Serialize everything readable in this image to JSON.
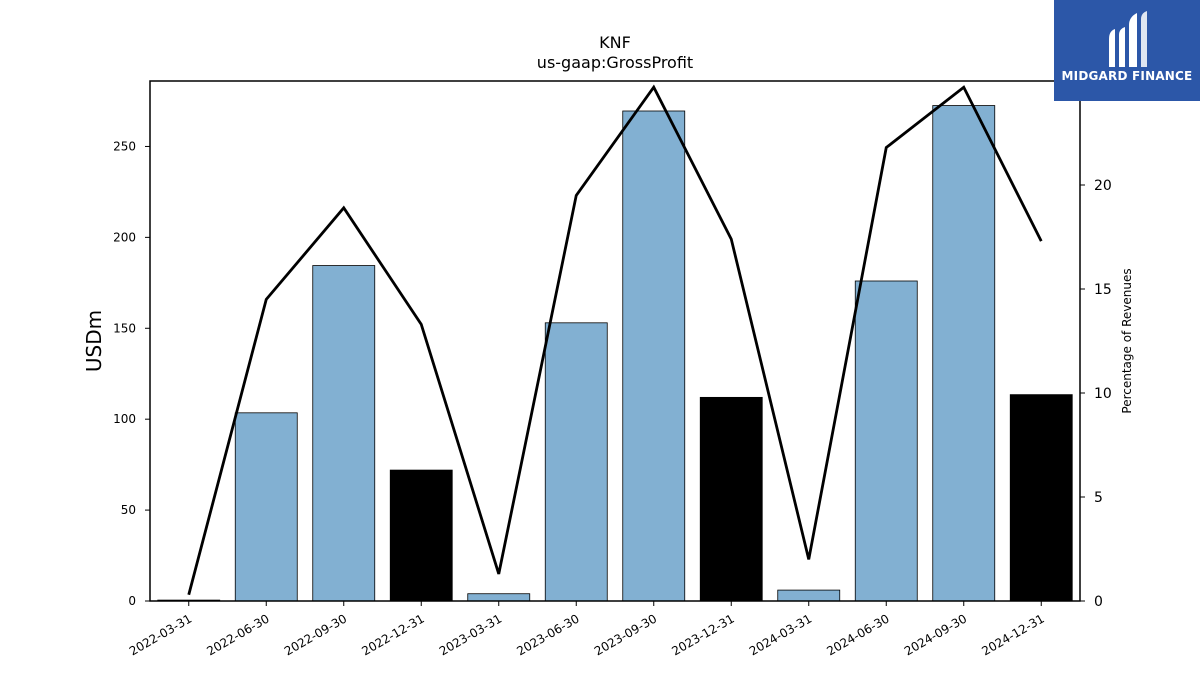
{
  "chart_data": {
    "type": "bar",
    "title": "KNF",
    "subtitle": "us-gaap:GrossProfit",
    "ylabel": "USDm",
    "y2label": "Percentage of Revenues",
    "categories": [
      "2022-03-31",
      "2022-06-30",
      "2022-09-30",
      "2022-12-31",
      "2023-03-31",
      "2023-06-30",
      "2023-09-30",
      "2023-12-31",
      "2024-03-31",
      "2024-06-30",
      "2024-09-30",
      "2024-12-31"
    ],
    "series": [
      {
        "values": [
          0.5,
          103.5,
          184.5,
          72,
          4,
          153,
          269.5,
          112,
          6,
          176,
          272.5,
          113.5
        ],
        "bar_colors": [
          "#82b0d2",
          "#82b0d2",
          "#82b0d2",
          "#000000",
          "#82b0d2",
          "#82b0d2",
          "#82b0d2",
          "#000000",
          "#82b0d2",
          "#82b0d2",
          "#82b0d2",
          "#000000"
        ]
      },
      {
        "type": "line",
        "axis": "right",
        "values": [
          0.3,
          14.5,
          18.9,
          13.3,
          1.3,
          19.5,
          24.7,
          17.4,
          2.0,
          21.8,
          24.7,
          17.3
        ],
        "color": "#000000"
      }
    ],
    "ylim": [
      0,
      286
    ],
    "y2lim": [
      0,
      25.0
    ],
    "yticks": [
      0,
      50,
      100,
      150,
      200,
      250
    ],
    "y2ticks": [
      0,
      5,
      10,
      15,
      20,
      25
    ],
    "grid": false,
    "legend": "none"
  },
  "logo": {
    "text": "MIDGARD FINANCE",
    "background": "#2c57a8",
    "icon": "midgard-logo-icon"
  }
}
